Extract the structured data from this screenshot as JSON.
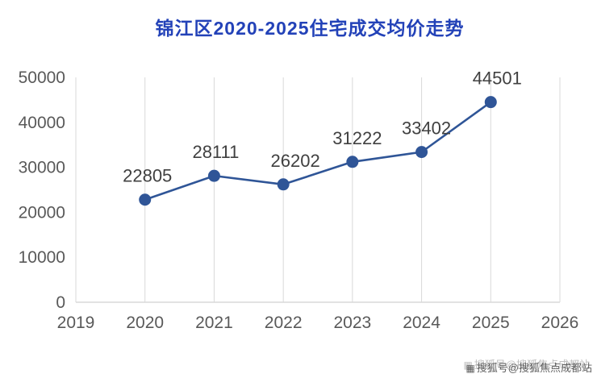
{
  "page": {
    "title": "锦江区2020-2025住宅成交均价走势"
  },
  "watermark": {
    "icon": "▦",
    "text": "搜狐号@搜狐焦点成都站"
  },
  "colors": {
    "title": "#2342b8",
    "line": "#2f5597",
    "grid": "#d9d9d9",
    "axis_text": "#595959",
    "label_text": "#404040",
    "watermark": "#464646"
  },
  "chart_data": {
    "type": "line",
    "title": "锦江区2020-2025住宅成交均价走势",
    "x": [
      2020,
      2021,
      2022,
      2023,
      2024,
      2025
    ],
    "values": [
      22805,
      28111,
      26202,
      31222,
      33402,
      44501
    ],
    "x_ticks": [
      2019,
      2020,
      2021,
      2022,
      2023,
      2024,
      2025,
      2026
    ],
    "y_ticks": [
      0,
      10000,
      20000,
      30000,
      40000,
      50000
    ],
    "xlim": [
      2019,
      2026
    ],
    "ylim": [
      0,
      50000
    ],
    "xlabel": "",
    "ylabel": "",
    "grid": "vertical",
    "legend": "none",
    "marker": "circle",
    "label_dx": [
      3,
      2,
      15,
      6,
      6,
      8
    ]
  }
}
